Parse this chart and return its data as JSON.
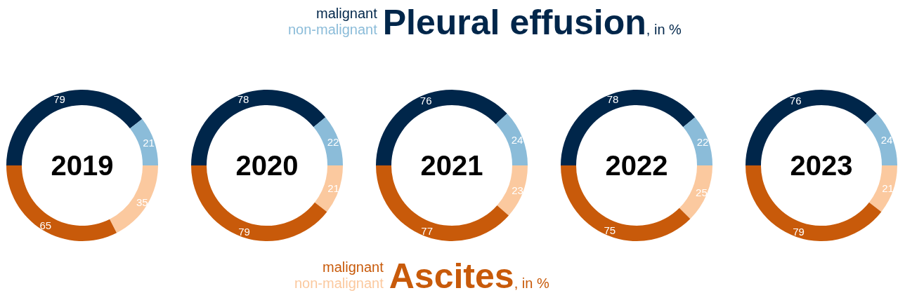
{
  "chart_data": [
    {
      "type": "other",
      "title": "Pleural effusion",
      "subtitle": ", in %",
      "annotations": [
        "malignant",
        "non-malignant"
      ]
    },
    {
      "type": "donut",
      "title": "2019",
      "categories": [
        null,
        null,
        null,
        null
      ],
      "values": [
        79,
        21,
        35,
        65
      ],
      "colors": [
        "#00264a",
        "#8bbcd9",
        "#fbc99f",
        "#c85a0a"
      ],
      "data_labels": true
    },
    {
      "type": "donut",
      "title": "2020",
      "categories": [
        null,
        null,
        null,
        null
      ],
      "values": [
        78,
        22,
        21,
        79
      ],
      "colors": [
        "#00264a",
        "#8bbcd9",
        "#fbc99f",
        "#c85a0a"
      ],
      "data_labels": true
    },
    {
      "type": "donut",
      "title": "2021",
      "categories": [
        null,
        null,
        null,
        null
      ],
      "values": [
        76,
        24,
        23,
        77
      ],
      "colors": [
        "#00264a",
        "#8bbcd9",
        "#fbc99f",
        "#c85a0a"
      ],
      "data_labels": true
    },
    {
      "type": "donut",
      "title": "2022",
      "categories": [
        null,
        null,
        null,
        null
      ],
      "values": [
        78,
        22,
        25,
        75
      ],
      "colors": [
        "#00264a",
        "#8bbcd9",
        "#fbc99f",
        "#c85a0a"
      ],
      "data_labels": true
    },
    {
      "type": "donut",
      "title": "2023",
      "categories": [
        null,
        null,
        null,
        null
      ],
      "values": [
        76,
        24,
        21,
        79
      ],
      "colors": [
        "#00264a",
        "#8bbcd9",
        "#fbc99f",
        "#c85a0a"
      ],
      "data_labels": true
    },
    {
      "type": "other",
      "title": "Ascites",
      "subtitle": ", in %",
      "annotations": [
        "malignant",
        "non-malignant"
      ]
    }
  ]
}
